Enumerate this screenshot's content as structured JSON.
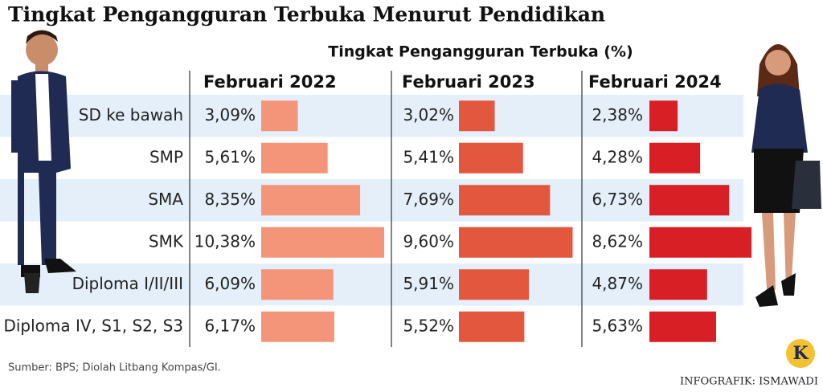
{
  "chart_data": {
    "type": "bar",
    "title": "Tingkat Pengangguran Terbuka Menurut Pendidikan",
    "subtitle": "Tingkat Pengangguran Terbuka (%)",
    "categories": [
      "SD ke bawah",
      "SMP",
      "SMA",
      "SMK",
      "Diploma I/II/III",
      "Diploma IV, S1, S2, S3"
    ],
    "series": [
      {
        "name": "Februari 2022",
        "color": "#f4957a",
        "values": [
          3.09,
          5.61,
          8.35,
          10.38,
          6.09,
          6.17
        ],
        "value_labels": [
          "3,09%",
          "5,61%",
          "8,35%",
          "10,38%",
          "6,09%",
          "6,17%"
        ]
      },
      {
        "name": "Februari 2023",
        "color": "#e4573f",
        "values": [
          3.02,
          5.41,
          7.69,
          9.6,
          5.91,
          5.52
        ],
        "value_labels": [
          "3,02%",
          "5,41%",
          "7,69%",
          "9,60%",
          "5,91%",
          "5,52%"
        ]
      },
      {
        "name": "Februari 2024",
        "color": "#d91f26",
        "values": [
          2.38,
          4.28,
          6.73,
          8.62,
          4.87,
          5.63
        ],
        "value_labels": [
          "2,38%",
          "4,28%",
          "6,73%",
          "8,62%",
          "4,87%",
          "5,63%"
        ]
      }
    ],
    "source": "Sumber: BPS; Diolah Litbang Kompas/GI.",
    "credit": "INFOGRAFIK: ISMAWADI",
    "logo": "K"
  }
}
